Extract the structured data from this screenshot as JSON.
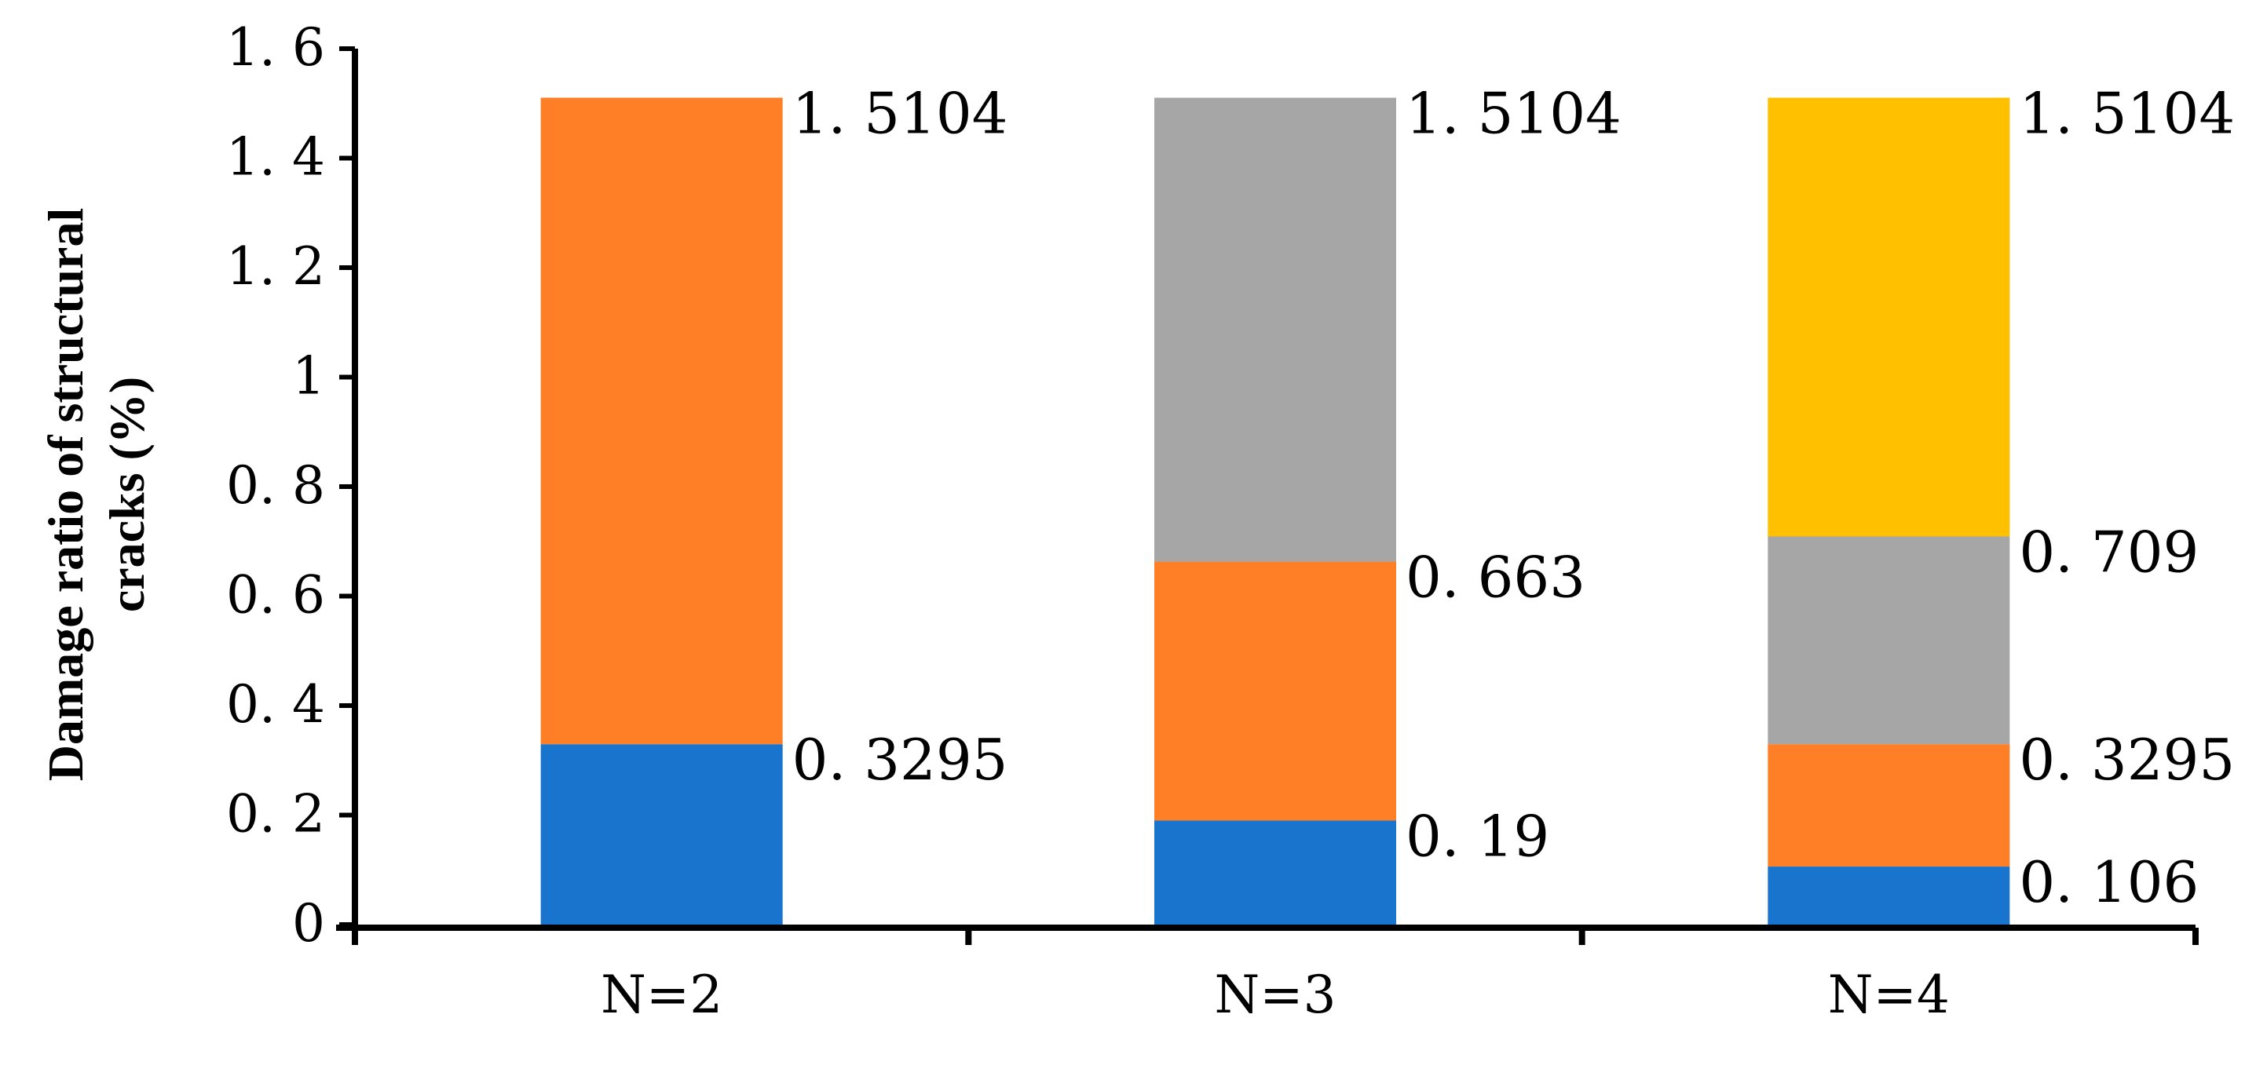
{
  "chart_data": {
    "type": "bar",
    "stacked": true,
    "title": "",
    "xlabel": "",
    "ylabel_lines": [
      "Damage ratio of structural",
      "cracks (%)"
    ],
    "ylim": [
      0,
      1.6
    ],
    "ytick_values": [
      0,
      0.2,
      0.4,
      0.6,
      0.8,
      1,
      1.2,
      1.4,
      1.6
    ],
    "ytick_labels": [
      "0",
      "0. 2",
      "0. 4",
      "0. 6",
      "0. 8",
      "1",
      "1. 2",
      "1. 4",
      "1. 6"
    ],
    "grid": false,
    "legend": "none",
    "categories": [
      "N=2",
      "N=3",
      "N=4"
    ],
    "stacks": [
      {
        "category": "N=2",
        "segments": [
          {
            "bottom": 0,
            "top": 0.3295,
            "color": "#1874CD",
            "label": "0. 3295"
          },
          {
            "bottom": 0.3295,
            "top": 1.5104,
            "color": "#FF7F27",
            "label": "1. 5104"
          }
        ]
      },
      {
        "category": "N=3",
        "segments": [
          {
            "bottom": 0,
            "top": 0.19,
            "color": "#1874CD",
            "label": "0. 19"
          },
          {
            "bottom": 0.19,
            "top": 0.663,
            "color": "#FF7F27",
            "label": "0. 663"
          },
          {
            "bottom": 0.663,
            "top": 1.5104,
            "color": "#A6A6A6",
            "label": "1. 5104"
          }
        ]
      },
      {
        "category": "N=4",
        "segments": [
          {
            "bottom": 0,
            "top": 0.106,
            "color": "#1874CD",
            "label": "0. 106"
          },
          {
            "bottom": 0.106,
            "top": 0.3295,
            "color": "#FF7F27",
            "label": "0. 3295"
          },
          {
            "bottom": 0.3295,
            "top": 0.709,
            "color": "#A6A6A6",
            "label": "0. 709"
          },
          {
            "bottom": 0.709,
            "top": 1.5104,
            "color": "#FFC000",
            "label": "1. 5104"
          }
        ]
      }
    ]
  }
}
